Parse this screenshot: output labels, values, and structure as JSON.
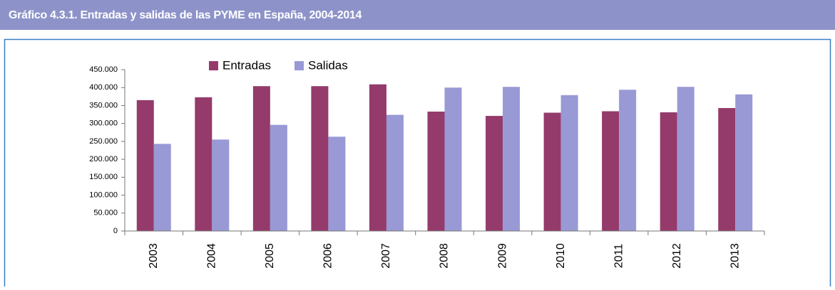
{
  "chart_data": {
    "type": "bar",
    "title": "Gráfico 4.3.1. Entradas y salidas de las PYME en España, 2004-2014",
    "categories": [
      "2003",
      "2004",
      "2005",
      "2006",
      "2007",
      "2008",
      "2009",
      "2010",
      "2011",
      "2012",
      "2013"
    ],
    "series": [
      {
        "name": "Entradas",
        "color": "#943b6b",
        "values": [
          365000,
          373000,
          404000,
          404000,
          409000,
          333000,
          321000,
          330000,
          334000,
          331000,
          343000
        ]
      },
      {
        "name": "Salidas",
        "color": "#9999d6",
        "values": [
          243000,
          255000,
          296000,
          263000,
          324000,
          400000,
          402000,
          379000,
          394000,
          402000,
          381000
        ]
      }
    ],
    "ylim": [
      0,
      450000
    ],
    "yticks": [
      0,
      {
        "value": 50000,
        "label": "50.000"
      },
      {
        "value": 100000,
        "label": "100.000"
      },
      {
        "value": 150000,
        "label": "150.000"
      },
      {
        "value": 200000,
        "label": "200.000"
      },
      {
        "value": 250000,
        "label": "250.000"
      },
      {
        "value": 300000,
        "label": "300.000"
      },
      {
        "value": 350000,
        "label": "350.000"
      },
      {
        "value": 400000,
        "label": "400.000"
      },
      {
        "value": 450000,
        "label": "450.000"
      }
    ],
    "grid": false,
    "legend": "top"
  }
}
